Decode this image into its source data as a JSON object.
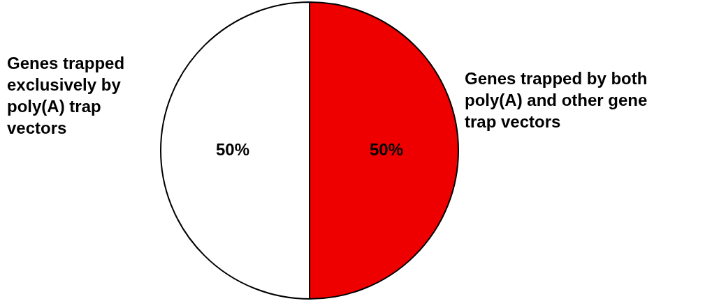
{
  "chart_data": {
    "type": "pie",
    "categories": [
      "Genes trapped exclusively by poly(A) trap vectors",
      "Genes trapped by both poly(A) and other gene trap vectors"
    ],
    "values": [
      50,
      50
    ],
    "colors": [
      "#ffffff",
      "#ee0000"
    ],
    "value_labels": [
      "50%",
      "50%"
    ]
  }
}
